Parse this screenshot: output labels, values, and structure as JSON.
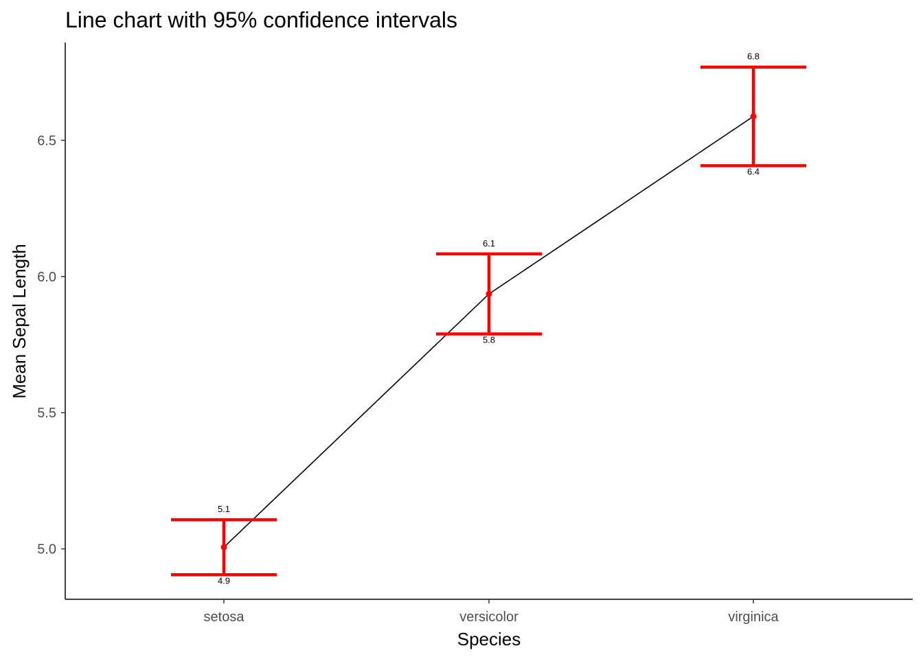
{
  "chart_data": {
    "type": "line",
    "title": "Line chart with 95% confidence intervals",
    "xlabel": "Species",
    "ylabel": "Mean Sepal Length",
    "categories": [
      "setosa",
      "versicolor",
      "virginica"
    ],
    "series": [
      {
        "values": [
          5.006,
          5.936,
          6.588
        ],
        "ci_lower": [
          4.905,
          5.789,
          6.407
        ],
        "ci_upper": [
          5.107,
          6.083,
          6.769
        ],
        "ci_lower_labels": [
          "4.9",
          "5.8",
          "6.4"
        ],
        "ci_upper_labels": [
          "5.1",
          "6.1",
          "6.8"
        ]
      }
    ],
    "ylim": [
      4.815,
      6.859
    ],
    "yticks": [
      5.0,
      5.5,
      6.0,
      6.5
    ],
    "ytick_labels": [
      "5.0",
      "5.5",
      "6.0",
      "6.5"
    ],
    "grid": false,
    "colors": {
      "line": "#000000",
      "errorbar": "#ff0000",
      "point": "#ff0000"
    }
  }
}
